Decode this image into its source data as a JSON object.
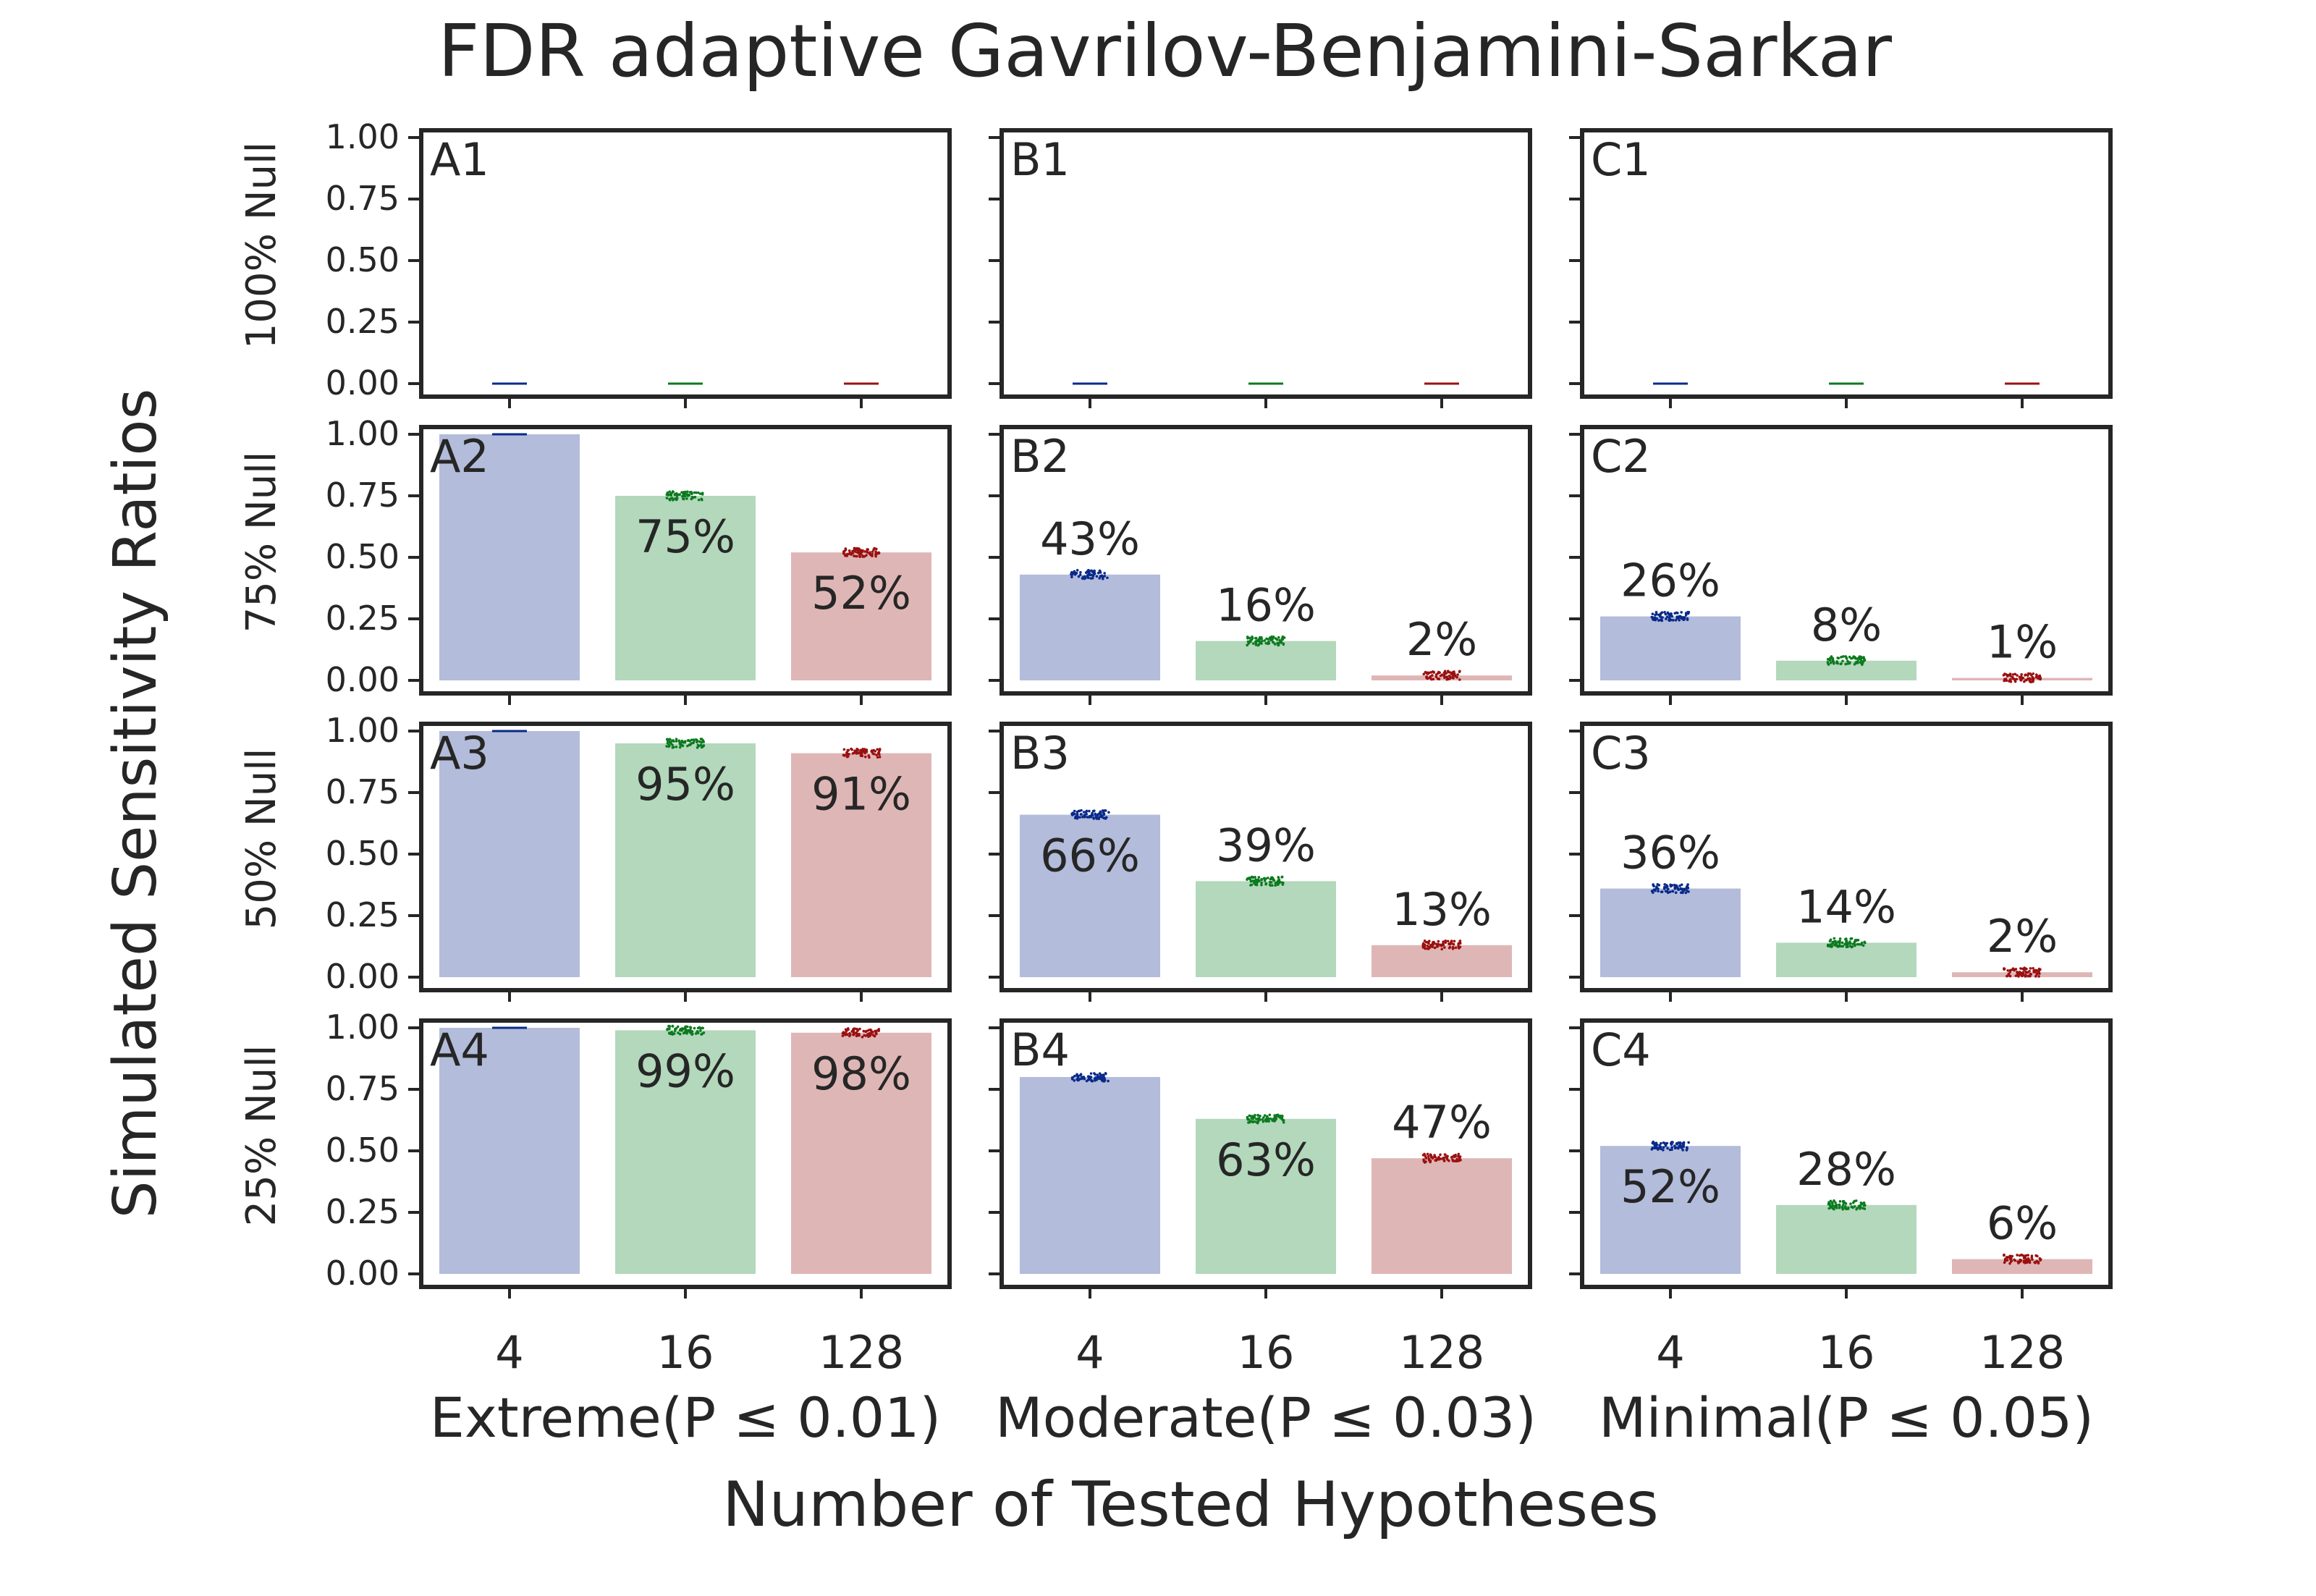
{
  "title": "FDR adaptive Gavrilov-Benjamini-Sarkar",
  "ylabel": "Simulated Sensitivity Ratios",
  "xlabel": "Number of Tested Hypotheses",
  "row_labels": [
    "100% Null",
    "75% Null",
    "50% Null",
    "25% Null"
  ],
  "column_labels": [
    "Extreme(P ≤ 0.01)",
    "Moderate(P ≤ 0.03)",
    "Minimal(P ≤ 0.05)"
  ],
  "colors": {
    "bar": [
      "#b3bcda",
      "#b3d8bc",
      "#dfb6b6"
    ],
    "points": [
      "#0a2a8a",
      "#0c7a1f",
      "#9a1010"
    ],
    "axis": "#262626"
  },
  "chart_data": {
    "type": "bar",
    "categories": [
      "4",
      "16",
      "128"
    ],
    "ylim": [
      0,
      1
    ],
    "yticks": [
      "0.00",
      "0.25",
      "0.50",
      "0.75",
      "1.00"
    ],
    "grid": false,
    "panels": [
      {
        "label": "A1",
        "row": 0,
        "col": 0,
        "values": [
          0.0,
          0.0,
          0.0
        ],
        "data_labels": [
          "",
          "",
          ""
        ]
      },
      {
        "label": "B1",
        "row": 0,
        "col": 1,
        "values": [
          0.0,
          0.0,
          0.0
        ],
        "data_labels": [
          "",
          "",
          ""
        ]
      },
      {
        "label": "C1",
        "row": 0,
        "col": 2,
        "values": [
          0.0,
          0.0,
          0.0
        ],
        "data_labels": [
          "",
          "",
          ""
        ]
      },
      {
        "label": "A2",
        "row": 1,
        "col": 0,
        "values": [
          1.0,
          0.75,
          0.52
        ],
        "data_labels": [
          "",
          "75%",
          "52%"
        ]
      },
      {
        "label": "B2",
        "row": 1,
        "col": 1,
        "values": [
          0.43,
          0.16,
          0.02
        ],
        "data_labels": [
          "43%",
          "16%",
          "2%"
        ]
      },
      {
        "label": "C2",
        "row": 1,
        "col": 2,
        "values": [
          0.26,
          0.08,
          0.01
        ],
        "data_labels": [
          "26%",
          "8%",
          "1%"
        ]
      },
      {
        "label": "A3",
        "row": 2,
        "col": 0,
        "values": [
          1.0,
          0.95,
          0.91
        ],
        "data_labels": [
          "",
          "95%",
          "91%"
        ]
      },
      {
        "label": "B3",
        "row": 2,
        "col": 1,
        "values": [
          0.66,
          0.39,
          0.13
        ],
        "data_labels": [
          "66%",
          "39%",
          "13%"
        ]
      },
      {
        "label": "C3",
        "row": 2,
        "col": 2,
        "values": [
          0.36,
          0.14,
          0.02
        ],
        "data_labels": [
          "36%",
          "14%",
          "2%"
        ]
      },
      {
        "label": "A4",
        "row": 3,
        "col": 0,
        "values": [
          1.0,
          0.99,
          0.98
        ],
        "data_labels": [
          "",
          "99%",
          "98%"
        ]
      },
      {
        "label": "B4",
        "row": 3,
        "col": 1,
        "values": [
          0.8,
          0.63,
          0.47
        ],
        "data_labels": [
          "",
          "63%",
          "47%"
        ]
      },
      {
        "label": "C4",
        "row": 3,
        "col": 2,
        "values": [
          0.52,
          0.28,
          0.06
        ],
        "data_labels": [
          "52%",
          "28%",
          "6%"
        ]
      }
    ]
  }
}
